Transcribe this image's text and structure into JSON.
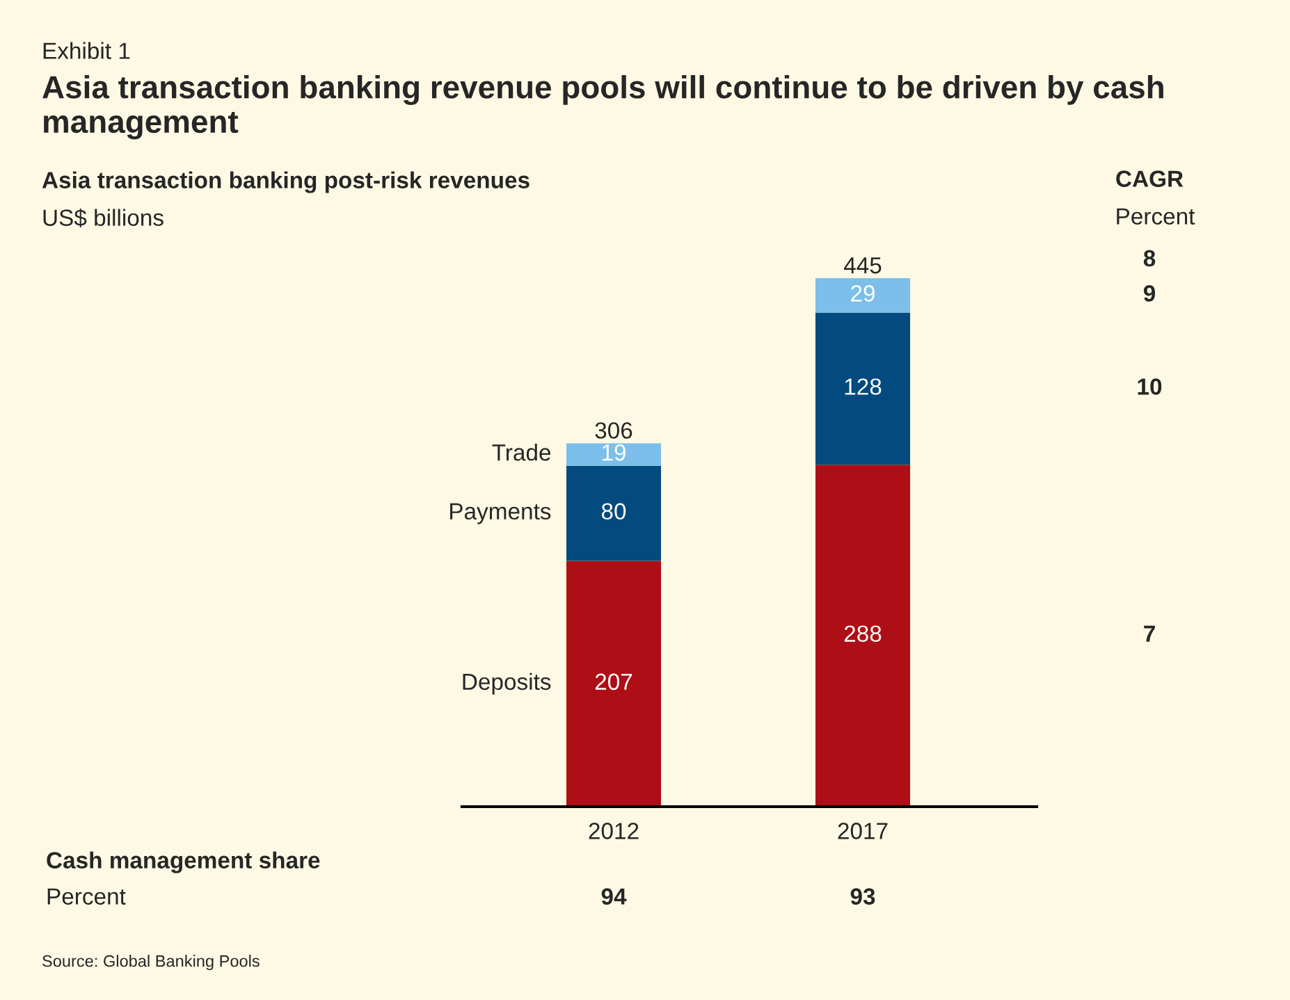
{
  "chart_data": {
    "type": "bar",
    "stacked": true,
    "title": "Asia transaction banking revenue pools will continue to be driven by cash management",
    "subtitle": "Asia transaction banking post-risk revenues",
    "categories": [
      "2012",
      "2017"
    ],
    "series": [
      {
        "name": "Deposits",
        "color": "#ae0e16",
        "values": [
          207,
          288
        ]
      },
      {
        "name": "Payments",
        "color": "#034b7f",
        "values": [
          80,
          128
        ]
      },
      {
        "name": "Trade",
        "color": "#7bbfea",
        "values": [
          19,
          29
        ]
      }
    ],
    "data_labels": true,
    "totals": [
      "306",
      "445"
    ],
    "legend": false,
    "grid": false,
    "annotations": [
      "US$ billions",
      "Exhibit 1",
      "CAGR",
      "Percent",
      "8",
      "9",
      "10",
      "7",
      "Cash management share",
      "Percent",
      "94",
      "93",
      "Source: Global Banking Pools"
    ]
  }
}
